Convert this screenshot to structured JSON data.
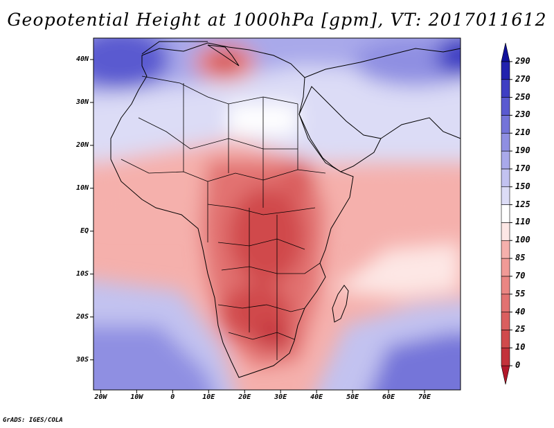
{
  "title": "Geopotential Height at 1000hPa [gpm], VT: 2017011612",
  "credit": "GrADS: IGES/COLA",
  "lat_labels": [
    "40N",
    "30N",
    "20N",
    "10N",
    "EQ",
    "10S",
    "20S",
    "30S"
  ],
  "lat_values": [
    40,
    30,
    20,
    10,
    0,
    -10,
    -20,
    -30
  ],
  "lon_labels": [
    "20W",
    "10W",
    "0",
    "10E",
    "20E",
    "30E",
    "40E",
    "50E",
    "60E",
    "70E"
  ],
  "lon_values": [
    -20,
    -10,
    0,
    10,
    20,
    30,
    40,
    50,
    60,
    70
  ],
  "map_extent": {
    "lon_min": -22,
    "lon_max": 80,
    "lat_min": -37,
    "lat_max": 45
  },
  "colorbar": {
    "levels": [
      "0",
      "10",
      "25",
      "40",
      "55",
      "70",
      "85",
      "100",
      "110",
      "125",
      "150",
      "170",
      "190",
      "210",
      "230",
      "250",
      "270",
      "290"
    ],
    "colors": [
      "#b2182b",
      "#c3323b",
      "#d04a4c",
      "#da5f5f",
      "#e27271",
      "#ea8683",
      "#f09a96",
      "#f5b0ac",
      "#fde7e5",
      "#ffffff",
      "#dcdcf6",
      "#c2c2f0",
      "#a9a9ea",
      "#8f8fe2",
      "#7474d9",
      "#5a5ad0",
      "#3e3ec3",
      "#2222ae",
      "#10109a"
    ]
  }
}
